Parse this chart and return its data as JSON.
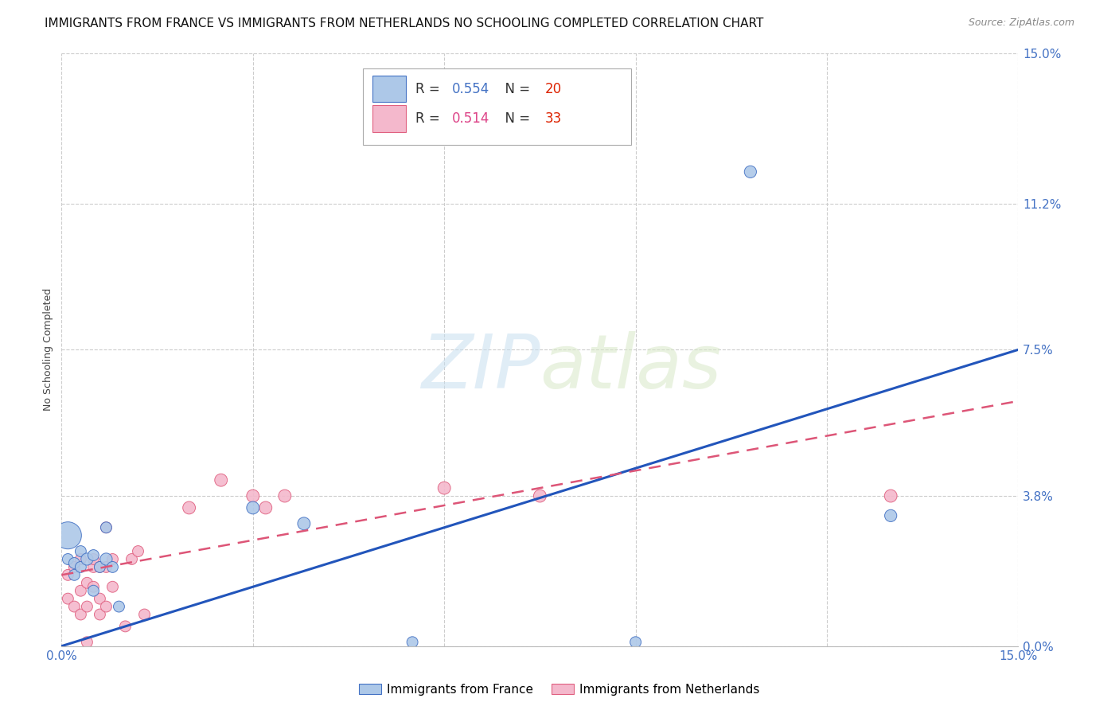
{
  "title": "IMMIGRANTS FROM FRANCE VS IMMIGRANTS FROM NETHERLANDS NO SCHOOLING COMPLETED CORRELATION CHART",
  "source": "Source: ZipAtlas.com",
  "ylabel": "No Schooling Completed",
  "xlim": [
    0.0,
    0.15
  ],
  "ylim": [
    0.0,
    0.15
  ],
  "ytick_values": [
    0.0,
    0.038,
    0.075,
    0.112,
    0.15
  ],
  "ytick_labels": [
    "0.0%",
    "3.8%",
    "7.5%",
    "11.2%",
    "15.0%"
  ],
  "xtick_values": [
    0.0,
    0.03,
    0.06,
    0.09,
    0.12,
    0.15
  ],
  "xtick_labels": [
    "0.0%",
    "",
    "",
    "",
    "",
    "15.0%"
  ],
  "france_color": "#adc8e8",
  "france_edge_color": "#4472c4",
  "netherlands_color": "#f4b8cc",
  "netherlands_edge_color": "#e06080",
  "france_line_color": "#2255bb",
  "netherlands_line_color": "#dd5577",
  "france_R": "0.554",
  "france_N": "20",
  "netherlands_R": "0.514",
  "netherlands_N": "33",
  "background_color": "#ffffff",
  "grid_color": "#cccccc",
  "tick_color": "#4472c4",
  "france_trend_x": [
    0.0,
    0.15
  ],
  "france_trend_y": [
    0.0,
    0.075
  ],
  "netherlands_trend_x": [
    0.0,
    0.15
  ],
  "netherlands_trend_y": [
    0.018,
    0.062
  ],
  "france_points": [
    [
      0.001,
      0.028
    ],
    [
      0.001,
      0.022
    ],
    [
      0.002,
      0.021
    ],
    [
      0.002,
      0.018
    ],
    [
      0.003,
      0.024
    ],
    [
      0.003,
      0.02
    ],
    [
      0.004,
      0.022
    ],
    [
      0.005,
      0.023
    ],
    [
      0.005,
      0.014
    ],
    [
      0.006,
      0.02
    ],
    [
      0.007,
      0.03
    ],
    [
      0.007,
      0.022
    ],
    [
      0.008,
      0.02
    ],
    [
      0.009,
      0.01
    ],
    [
      0.03,
      0.035
    ],
    [
      0.038,
      0.031
    ],
    [
      0.055,
      0.001
    ],
    [
      0.09,
      0.001
    ],
    [
      0.108,
      0.12
    ],
    [
      0.13,
      0.033
    ]
  ],
  "france_sizes": [
    600,
    100,
    100,
    100,
    100,
    100,
    120,
    100,
    100,
    100,
    100,
    120,
    100,
    100,
    130,
    130,
    100,
    100,
    120,
    120
  ],
  "netherlands_points": [
    [
      0.001,
      0.018
    ],
    [
      0.001,
      0.012
    ],
    [
      0.002,
      0.01
    ],
    [
      0.002,
      0.02
    ],
    [
      0.003,
      0.014
    ],
    [
      0.003,
      0.008
    ],
    [
      0.003,
      0.022
    ],
    [
      0.004,
      0.016
    ],
    [
      0.004,
      0.01
    ],
    [
      0.004,
      0.001
    ],
    [
      0.005,
      0.02
    ],
    [
      0.005,
      0.015
    ],
    [
      0.005,
      0.022
    ],
    [
      0.006,
      0.012
    ],
    [
      0.006,
      0.02
    ],
    [
      0.006,
      0.008
    ],
    [
      0.007,
      0.01
    ],
    [
      0.007,
      0.02
    ],
    [
      0.007,
      0.03
    ],
    [
      0.008,
      0.022
    ],
    [
      0.008,
      0.015
    ],
    [
      0.01,
      0.005
    ],
    [
      0.011,
      0.022
    ],
    [
      0.012,
      0.024
    ],
    [
      0.013,
      0.008
    ],
    [
      0.02,
      0.035
    ],
    [
      0.025,
      0.042
    ],
    [
      0.03,
      0.038
    ],
    [
      0.032,
      0.035
    ],
    [
      0.035,
      0.038
    ],
    [
      0.06,
      0.04
    ],
    [
      0.075,
      0.038
    ],
    [
      0.13,
      0.038
    ]
  ],
  "netherlands_sizes": [
    100,
    100,
    100,
    100,
    100,
    100,
    100,
    100,
    100,
    100,
    100,
    100,
    100,
    100,
    100,
    100,
    100,
    100,
    100,
    100,
    100,
    100,
    100,
    100,
    100,
    130,
    130,
    130,
    130,
    130,
    130,
    130,
    130
  ],
  "title_fontsize": 11,
  "axis_label_fontsize": 9,
  "tick_fontsize": 11,
  "legend_fontsize": 12,
  "watermark_text": "ZIPatlas",
  "watermark_color": "#d8eaf8",
  "legend_R_color": "#4472c4",
  "legend_N_color": "#ee3311",
  "legend_pink_R_color": "#dd4488",
  "legend_pink_N_color": "#ee3311"
}
